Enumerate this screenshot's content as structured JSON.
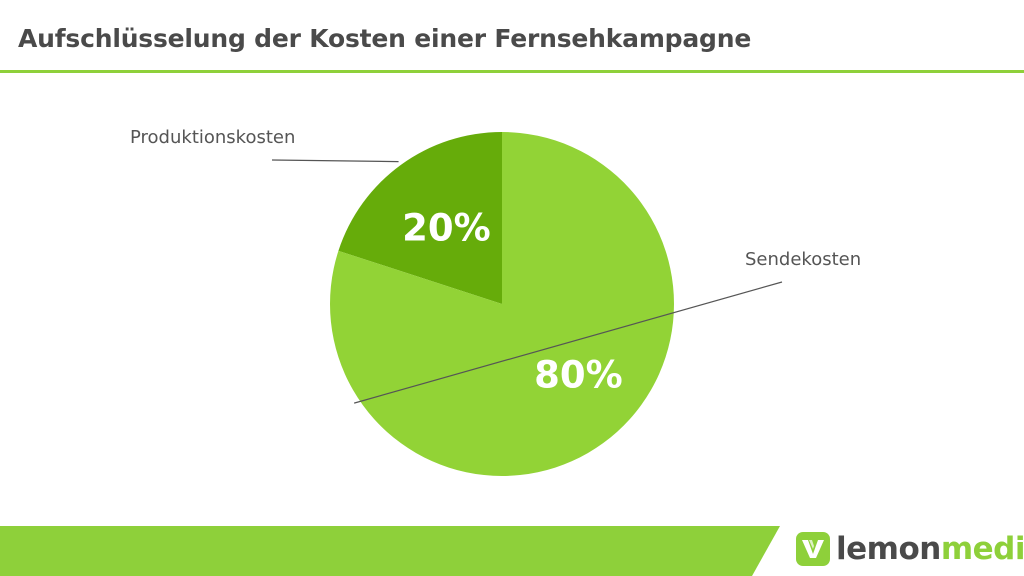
{
  "title": "Aufschlüsselung der Kosten einer Fernsehkampagne",
  "colors": {
    "accent": "#8ed03a",
    "dark_green": "#66ac0a",
    "light_green": "#92d336",
    "text": "#4a4a4a"
  },
  "chart_data": {
    "type": "pie",
    "title": "Aufschlüsselung der Kosten einer Fernsehkampagne",
    "start_angle_deg": 0,
    "direction": "counterclockwise",
    "slices": [
      {
        "label": "Produktionskosten",
        "value": 20,
        "display": "20%",
        "color": "#66ac0a"
      },
      {
        "label": "Sendekosten",
        "value": 80,
        "display": "80%",
        "color": "#92d336"
      }
    ]
  },
  "logo": {
    "name_part1": "lemon",
    "name_part2": "media",
    "icon": "lemonmedia-logo-icon"
  }
}
